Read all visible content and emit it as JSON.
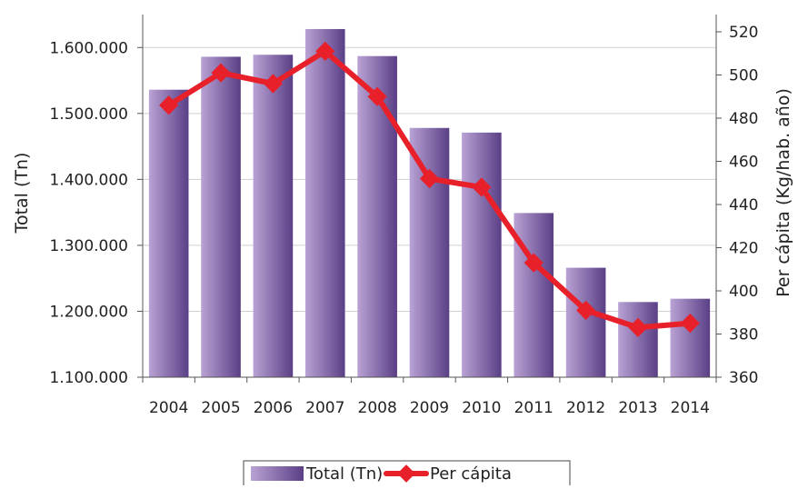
{
  "chart_data": {
    "type": "bar",
    "categories": [
      "2004",
      "2005",
      "2006",
      "2007",
      "2008",
      "2009",
      "2010",
      "2011",
      "2012",
      "2013",
      "2014"
    ],
    "series": [
      {
        "name": "Total (Tn)",
        "type": "bar",
        "axis": "left",
        "values": [
          1536000,
          1586000,
          1589000,
          1628000,
          1587000,
          1478000,
          1471000,
          1349000,
          1266000,
          1214000,
          1219000
        ]
      },
      {
        "name": "Per cápita",
        "type": "line",
        "axis": "right",
        "values": [
          486,
          501,
          496,
          511,
          490,
          452,
          448,
          413,
          391,
          383,
          385
        ]
      }
    ],
    "ylabel": "Total (Tn)",
    "y2label": "Per cápita (Kg/hab. año)",
    "ylim": [
      1100000,
      1650000
    ],
    "y2lim": [
      360,
      528
    ],
    "yticks": [
      1100000,
      1200000,
      1300000,
      1400000,
      1500000,
      1600000
    ],
    "ytick_labels": [
      "1.100.000",
      "1.200.000",
      "1.300.000",
      "1.400.000",
      "1.500.000",
      "1.600.000"
    ],
    "y2ticks": [
      360,
      380,
      400,
      420,
      440,
      460,
      480,
      500,
      520
    ],
    "ytick2_labels": [
      "360",
      "380",
      "400",
      "420",
      "440",
      "460",
      "480",
      "500",
      "520"
    ],
    "grid": true,
    "legend_position": "bottom",
    "colors": {
      "bar_light": "#b9a2d4",
      "bar_dark": "#5a3f86",
      "line": "#e8202a",
      "grid": "#cfcfcf",
      "axis": "#555555"
    }
  }
}
